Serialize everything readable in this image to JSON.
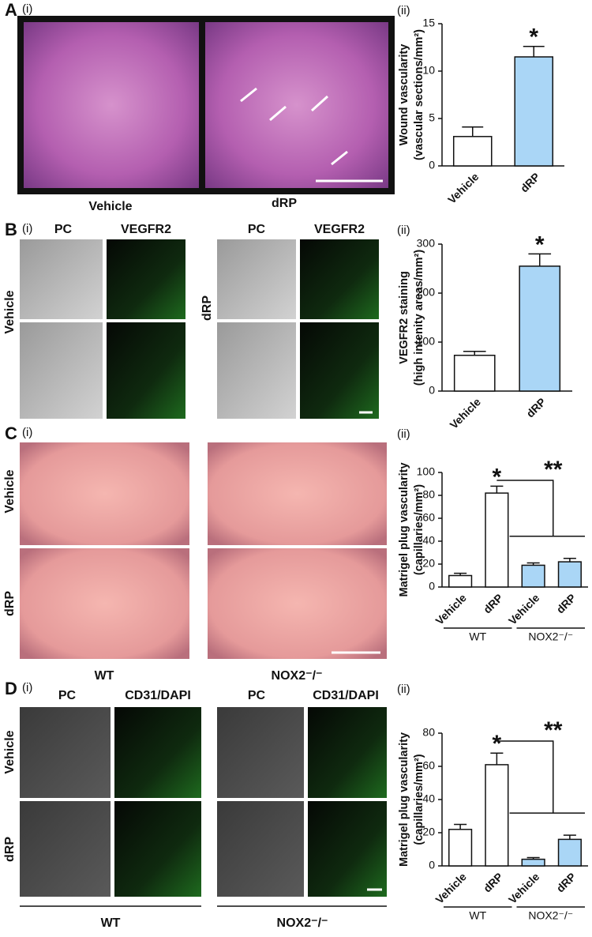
{
  "panels": [
    {
      "label": "A",
      "left": "(i)",
      "right": "(ii)",
      "image_labels": [
        "Vehicle",
        "dRP"
      ]
    },
    {
      "label": "B",
      "left": "(i)",
      "right": "(ii)",
      "column_labels": [
        "PC",
        "VEGFR2",
        "PC",
        "VEGFR2"
      ],
      "row_labels": [
        "Vehicle",
        "dRP"
      ]
    },
    {
      "label": "C",
      "left": "(i)",
      "right": "(ii)",
      "row_labels": [
        "Vehicle",
        "dRP"
      ],
      "group_labels": [
        "WT",
        "NOX2⁻/⁻"
      ]
    },
    {
      "label": "D",
      "left": "(i)",
      "right": "(ii)",
      "column_labels": [
        "PC",
        "CD31/DAPI",
        "PC",
        "CD31/DAPI"
      ],
      "row_labels": [
        "Vehicle",
        "dRP"
      ],
      "group_labels": [
        "WT",
        "NOX2⁻/⁻"
      ]
    }
  ],
  "chart_data": [
    {
      "type": "bar",
      "y_label": [
        "Wound vascularity",
        "(vascular sections/mm²)"
      ],
      "categories": [
        "Vehicle",
        "dRP"
      ],
      "values": [
        3.1,
        11.5
      ],
      "errors": [
        1.0,
        1.1
      ],
      "colors": [
        "#ffffff",
        "#aad6f6"
      ],
      "ylim": [
        0,
        15
      ],
      "yticks": [
        0,
        5,
        10,
        15
      ],
      "annotations": [
        "*"
      ]
    },
    {
      "type": "bar",
      "y_label": [
        "VEGFR2 staining",
        "(high intenity areas/mm²)"
      ],
      "categories": [
        "Vehicle",
        "dRP"
      ],
      "values": [
        73,
        255
      ],
      "errors": [
        8,
        25
      ],
      "colors": [
        "#ffffff",
        "#aad6f6"
      ],
      "ylim": [
        0,
        300
      ],
      "yticks": [
        0,
        100,
        200,
        300
      ],
      "annotations": [
        "*"
      ]
    },
    {
      "type": "bar",
      "y_label": [
        "Matrigel plug vascularity",
        "(capillaries/mm²)"
      ],
      "categories": [
        "Vehicle",
        "dRP",
        "Vehicle",
        "dRP"
      ],
      "groups": [
        "WT",
        "NOX2⁻/⁻"
      ],
      "values": [
        10,
        82,
        19,
        22
      ],
      "errors": [
        2,
        6,
        2,
        3
      ],
      "colors": [
        "#ffffff",
        "#ffffff",
        "#aad6f6",
        "#aad6f6"
      ],
      "ylim": [
        0,
        100
      ],
      "yticks": [
        0,
        20,
        40,
        60,
        80,
        100
      ],
      "annotations": [
        "*",
        "**"
      ]
    },
    {
      "type": "bar",
      "y_label": [
        "Matrigel plug vascularity",
        "(capillaries/mm²)"
      ],
      "categories": [
        "Vehicle",
        "dRP",
        "Vehicle",
        "dRP"
      ],
      "groups": [
        "WT",
        "NOX2⁻/⁻"
      ],
      "values": [
        22,
        61,
        4,
        16
      ],
      "errors": [
        3,
        7,
        1,
        2.5
      ],
      "colors": [
        "#ffffff",
        "#ffffff",
        "#aad6f6",
        "#aad6f6"
      ],
      "ylim": [
        0,
        80
      ],
      "yticks": [
        0,
        20,
        40,
        60,
        80
      ],
      "annotations": [
        "*",
        "**"
      ]
    }
  ]
}
